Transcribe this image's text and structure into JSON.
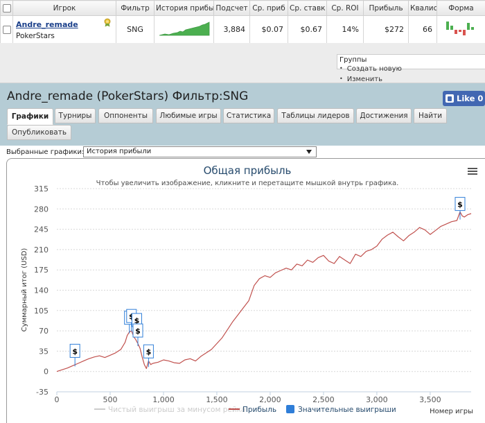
{
  "table": {
    "headers": [
      "",
      "Игрок",
      "Фильтр",
      "История прибы",
      "Подсчет",
      "Ср. приб",
      "Ср. ставк",
      "Ср. ROI",
      "Прибыль",
      "Квалис",
      "Форма"
    ],
    "row": {
      "player_name": "Andre_remade",
      "room": "PokerStars",
      "filter": "SNG",
      "count": "3,884",
      "avg_profit": "$0.07",
      "avg_stake": "$0.67",
      "avg_roi": "14%",
      "profit": "$272",
      "ability": "66"
    }
  },
  "groups": {
    "title": "Группы",
    "links": [
      "Создать новую",
      "Изменить"
    ]
  },
  "header": {
    "title": "Andre_remade (PokerStars) Фильтр:SNG",
    "like_label": "Like 0",
    "tabs": [
      "Графики",
      "Турниры",
      "Оппоненты",
      "Любимые игры",
      "Статистика",
      "Таблицы лидеров",
      "Достижения",
      "Найти",
      "Опубликовать"
    ]
  },
  "selector": {
    "label": "Выбранные графики:",
    "value": "История прибыли"
  },
  "colors": {
    "profit_line": "#c0504d",
    "rake_line": "#cccccc",
    "big_wins": "#2f7ed8",
    "header_bg": "#b5ccd5",
    "title_color": "#274b6d"
  },
  "chart_data": {
    "type": "line",
    "title": "Общая прибыль",
    "subtitle": "Чтобы увеличить изображение, кликните и перетащите мышкой внутрь графика.",
    "ylabel": "Суммарный итог (USD)",
    "xlabel": "Номер игры",
    "ylim": [
      -35,
      315
    ],
    "xlim": [
      0,
      3884
    ],
    "yticks": [
      -35,
      0,
      35,
      70,
      105,
      140,
      175,
      210,
      245,
      280,
      315
    ],
    "xticks": [
      0,
      500,
      1000,
      1500,
      2000,
      2500,
      3000,
      3500
    ],
    "xtick_labels": [
      "0",
      "500",
      "1,000",
      "1,500",
      "2,000",
      "2,500",
      "3,000",
      "3,500"
    ],
    "grid": true,
    "legend_position": "bottom",
    "series": [
      {
        "name": "Чистый выигрыш за минусом рейка",
        "values": []
      },
      {
        "name": "Прибыль",
        "x": [
          0,
          100,
          150,
          200,
          250,
          300,
          350,
          400,
          450,
          500,
          550,
          600,
          640,
          660,
          680,
          700,
          720,
          740,
          760,
          780,
          800,
          820,
          840,
          860,
          880,
          900,
          950,
          1000,
          1050,
          1100,
          1150,
          1200,
          1250,
          1300,
          1350,
          1400,
          1450,
          1500,
          1550,
          1600,
          1650,
          1700,
          1750,
          1800,
          1850,
          1900,
          1950,
          2000,
          2050,
          2100,
          2150,
          2200,
          2250,
          2300,
          2350,
          2400,
          2450,
          2500,
          2550,
          2600,
          2650,
          2700,
          2750,
          2800,
          2850,
          2900,
          2950,
          3000,
          3050,
          3100,
          3150,
          3200,
          3250,
          3300,
          3350,
          3400,
          3450,
          3500,
          3550,
          3600,
          3650,
          3700,
          3750,
          3780,
          3800,
          3820,
          3850,
          3884
        ],
        "values": [
          0,
          6,
          10,
          14,
          18,
          22,
          25,
          27,
          24,
          28,
          32,
          38,
          50,
          62,
          68,
          70,
          60,
          55,
          48,
          40,
          25,
          12,
          5,
          18,
          12,
          14,
          16,
          20,
          18,
          15,
          14,
          20,
          22,
          18,
          26,
          32,
          38,
          48,
          58,
          72,
          86,
          98,
          110,
          122,
          148,
          160,
          165,
          162,
          170,
          174,
          178,
          175,
          185,
          182,
          192,
          188,
          196,
          200,
          190,
          186,
          198,
          192,
          186,
          202,
          198,
          207,
          210,
          216,
          228,
          235,
          240,
          232,
          225,
          234,
          240,
          248,
          244,
          236,
          243,
          250,
          254,
          258,
          260,
          275,
          268,
          266,
          270,
          272
        ]
      }
    ],
    "big_wins": [
      {
        "x": 170,
        "y": 35,
        "label": "$"
      },
      {
        "x": 680,
        "y": 92,
        "label": "$"
      },
      {
        "x": 700,
        "y": 95,
        "label": "$"
      },
      {
        "x": 750,
        "y": 88,
        "label": "$"
      },
      {
        "x": 760,
        "y": 70,
        "label": "$"
      },
      {
        "x": 860,
        "y": 34,
        "label": "$"
      },
      {
        "x": 3780,
        "y": 288,
        "label": "$"
      }
    ],
    "legend": [
      "Чистый выигрыш за минусом рейка",
      "Прибыль",
      "Значительные выигрыши"
    ]
  }
}
